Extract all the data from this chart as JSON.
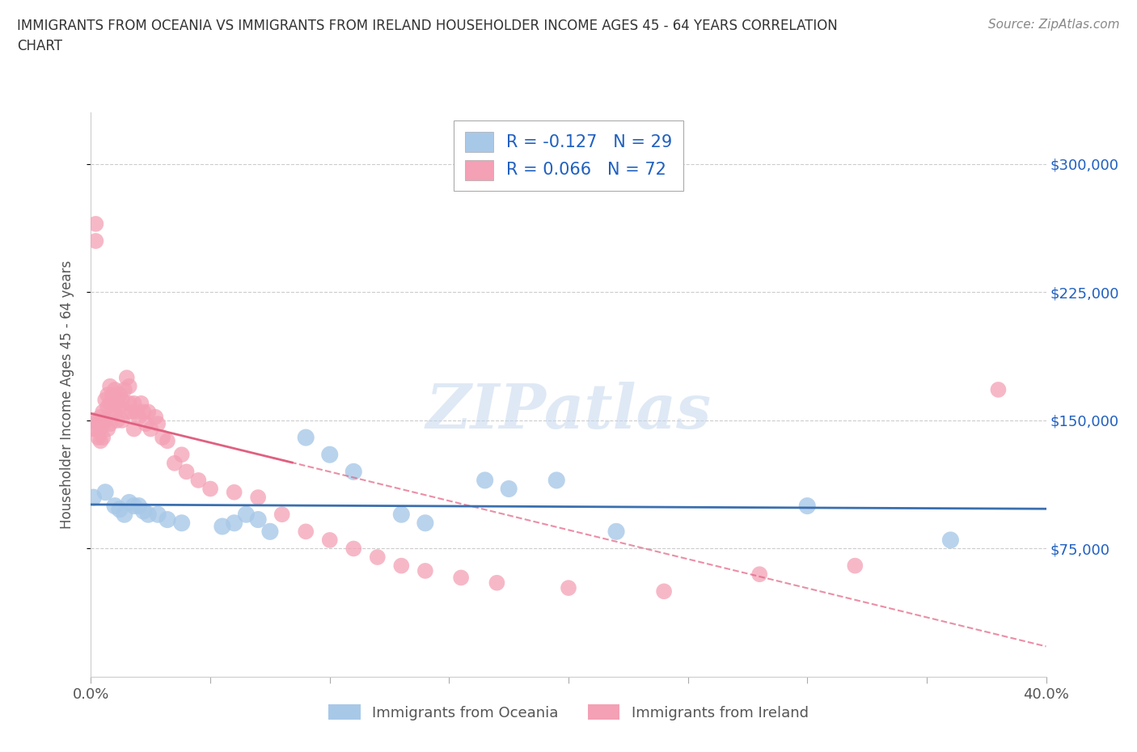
{
  "title": "IMMIGRANTS FROM OCEANIA VS IMMIGRANTS FROM IRELAND HOUSEHOLDER INCOME AGES 45 - 64 YEARS CORRELATION\nCHART",
  "source": "Source: ZipAtlas.com",
  "ylabel": "Householder Income Ages 45 - 64 years",
  "xmin": 0.0,
  "xmax": 0.4,
  "ymin": 0,
  "ymax": 330000,
  "yticks": [
    75000,
    150000,
    225000,
    300000
  ],
  "ytick_labels": [
    "$75,000",
    "$150,000",
    "$225,000",
    "$300,000"
  ],
  "xticks": [
    0.0,
    0.05,
    0.1,
    0.15,
    0.2,
    0.25,
    0.3,
    0.35,
    0.4
  ],
  "oceania_color": "#a8c8e8",
  "ireland_color": "#f4a0b5",
  "oceania_line_color": "#3a6faf",
  "ireland_line_color": "#e06080",
  "legend_text_color": "#2060c0",
  "R_oceania": -0.127,
  "N_oceania": 29,
  "R_ireland": 0.066,
  "N_ireland": 72,
  "oceania_x": [
    0.001,
    0.006,
    0.01,
    0.012,
    0.014,
    0.016,
    0.018,
    0.02,
    0.022,
    0.024,
    0.028,
    0.032,
    0.038,
    0.055,
    0.06,
    0.065,
    0.07,
    0.075,
    0.09,
    0.1,
    0.11,
    0.13,
    0.14,
    0.165,
    0.175,
    0.195,
    0.22,
    0.3,
    0.36
  ],
  "oceania_y": [
    105000,
    108000,
    100000,
    98000,
    95000,
    102000,
    100000,
    100000,
    97000,
    95000,
    95000,
    92000,
    90000,
    88000,
    90000,
    95000,
    92000,
    85000,
    140000,
    130000,
    120000,
    95000,
    90000,
    115000,
    110000,
    115000,
    85000,
    100000,
    80000
  ],
  "ireland_x": [
    0.001,
    0.001,
    0.002,
    0.002,
    0.002,
    0.003,
    0.003,
    0.003,
    0.004,
    0.004,
    0.004,
    0.005,
    0.005,
    0.005,
    0.006,
    0.006,
    0.007,
    0.007,
    0.007,
    0.008,
    0.008,
    0.008,
    0.009,
    0.009,
    0.01,
    0.01,
    0.011,
    0.011,
    0.012,
    0.012,
    0.013,
    0.013,
    0.014,
    0.015,
    0.015,
    0.016,
    0.016,
    0.017,
    0.018,
    0.018,
    0.019,
    0.02,
    0.021,
    0.022,
    0.023,
    0.024,
    0.025,
    0.027,
    0.028,
    0.03,
    0.032,
    0.035,
    0.038,
    0.04,
    0.045,
    0.05,
    0.06,
    0.07,
    0.08,
    0.09,
    0.1,
    0.11,
    0.12,
    0.13,
    0.14,
    0.155,
    0.17,
    0.2,
    0.24,
    0.28,
    0.32,
    0.38
  ],
  "ireland_y": [
    150000,
    145000,
    265000,
    255000,
    145000,
    150000,
    148000,
    140000,
    145000,
    152000,
    138000,
    155000,
    148000,
    140000,
    162000,
    150000,
    165000,
    158000,
    145000,
    170000,
    160000,
    148000,
    165000,
    155000,
    168000,
    155000,
    162000,
    150000,
    165000,
    158000,
    162000,
    150000,
    168000,
    175000,
    155000,
    170000,
    160000,
    155000,
    160000,
    145000,
    155000,
    152000,
    160000,
    155000,
    148000,
    155000,
    145000,
    152000,
    148000,
    140000,
    138000,
    125000,
    130000,
    120000,
    115000,
    110000,
    108000,
    105000,
    95000,
    85000,
    80000,
    75000,
    70000,
    65000,
    62000,
    58000,
    55000,
    52000,
    50000,
    60000,
    65000,
    168000
  ]
}
